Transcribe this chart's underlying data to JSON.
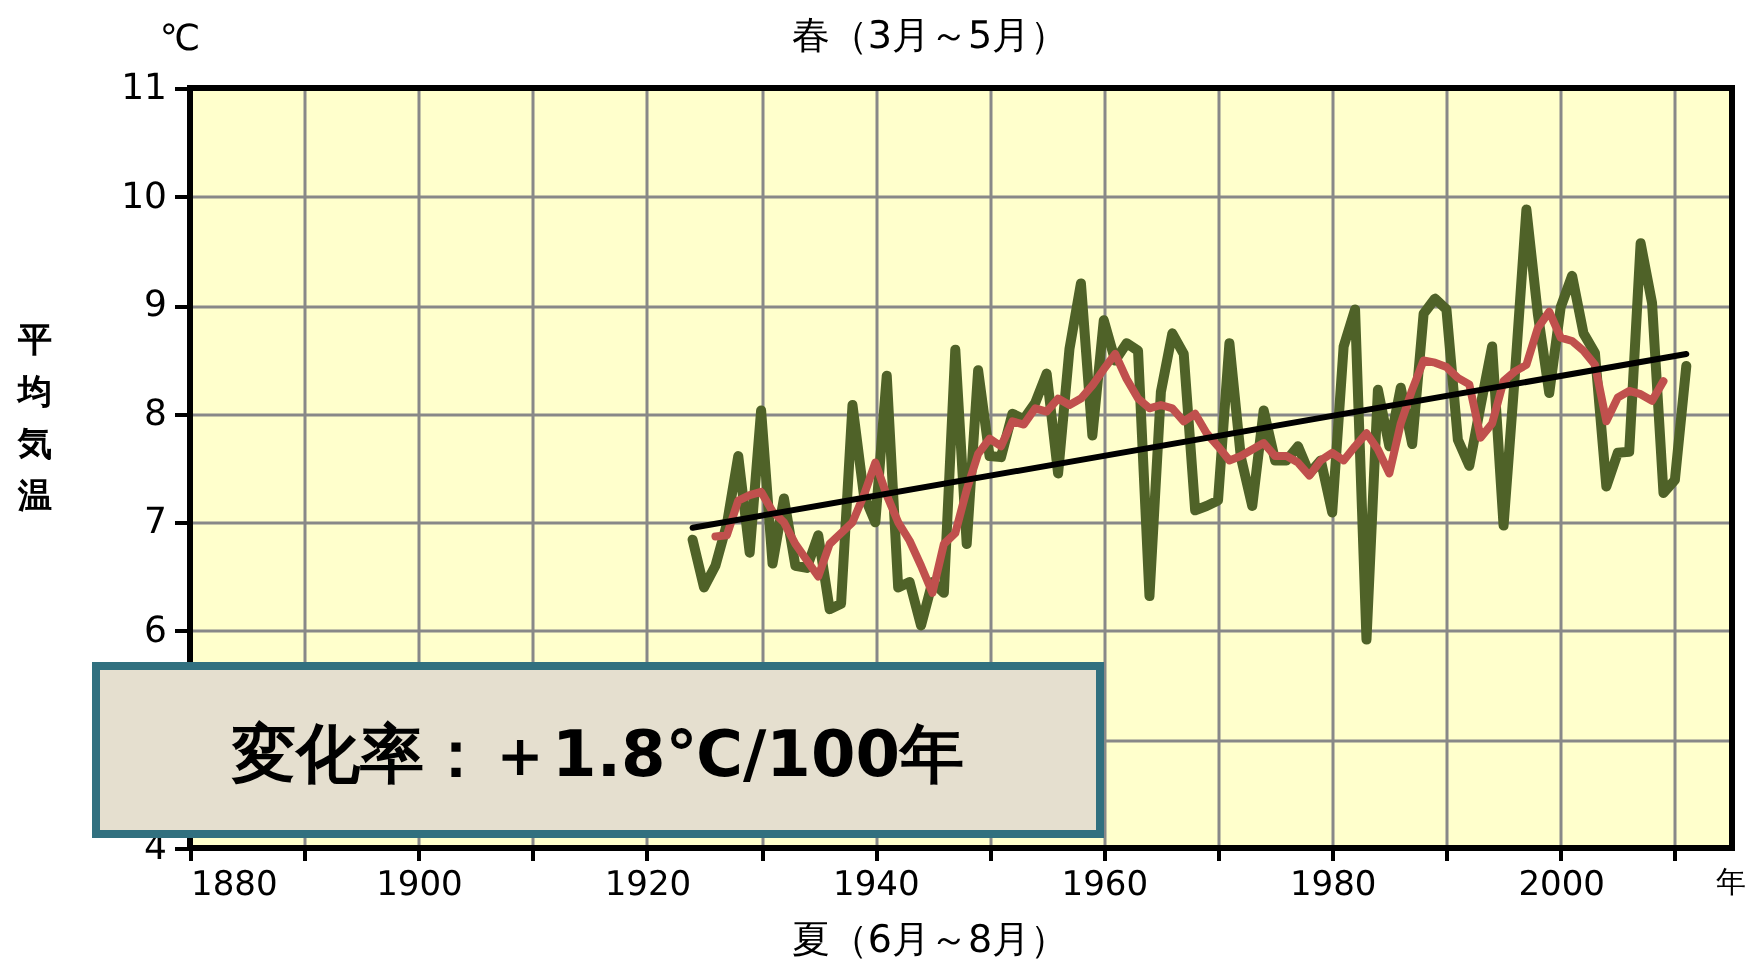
{
  "chart_data": {
    "type": "line",
    "title": "春（3月～5月）",
    "ylabel": "平均気温",
    "annotations": [
      "℃",
      "年",
      "夏（6月～8月）",
      "変化率：＋1.8℃/100年"
    ],
    "xlim": [
      1880,
      2015
    ],
    "xticks": [
      1880,
      {
        "value": 1890,
        "label": null
      },
      1900,
      {
        "value": 1910,
        "label": null
      },
      1920,
      {
        "value": 1930,
        "label": null
      },
      1940,
      {
        "value": 1950,
        "label": null
      },
      1960,
      {
        "value": 1970,
        "label": null
      },
      1980,
      {
        "value": 1990,
        "label": null
      },
      2000,
      {
        "value": 2010,
        "label": null
      }
    ],
    "ylim": [
      4,
      11
    ],
    "yticks": [
      4,
      {
        "value": 5,
        "label": null
      },
      6,
      7,
      8,
      9,
      10,
      11
    ],
    "grid": true,
    "marker": "none",
    "line_style": "solid",
    "series": [
      {
        "color": "#4f6228",
        "x": [
          1924,
          1925,
          1926,
          1927,
          1928,
          1929,
          1930,
          1931,
          1932,
          1933,
          1934,
          1935,
          1936,
          1937,
          1938,
          1939,
          1940,
          1941,
          1942,
          1943,
          1944,
          1945,
          1946,
          1947,
          1948,
          1949,
          1950,
          1951,
          1952,
          1953,
          1954,
          1955,
          1956,
          1957,
          1958,
          1959,
          1960,
          1961,
          1962,
          1963,
          1964,
          1965,
          1966,
          1967,
          1968,
          1969,
          1970,
          1971,
          1972,
          1973,
          1974,
          1975,
          1976,
          1977,
          1978,
          1979,
          1980,
          1981,
          1982,
          1983,
          1984,
          1985,
          1986,
          1987,
          1988,
          1989,
          1990,
          1991,
          1992,
          1993,
          1994,
          1995,
          1996,
          1997,
          1998,
          1999,
          2000,
          2001,
          2002,
          2003,
          2004,
          2005,
          2006,
          2007,
          2008,
          2009,
          2010,
          2011
        ],
        "values": [
          6.84,
          6.4,
          6.6,
          6.98,
          7.61,
          6.72,
          8.03,
          6.62,
          7.22,
          6.6,
          6.58,
          6.88,
          6.2,
          6.25,
          8.08,
          7.25,
          7.0,
          8.35,
          6.4,
          6.45,
          6.05,
          6.45,
          6.35,
          8.59,
          6.8,
          8.4,
          7.61,
          7.6,
          8.0,
          7.95,
          8.1,
          8.37,
          7.45,
          8.6,
          9.2,
          7.8,
          8.86,
          8.49,
          8.65,
          8.58,
          6.32,
          8.2,
          8.74,
          8.55,
          7.11,
          7.15,
          7.2,
          8.65,
          7.6,
          7.15,
          8.03,
          7.57,
          7.57,
          7.7,
          7.45,
          7.57,
          7.09,
          8.62,
          8.96,
          5.92,
          8.22,
          7.7,
          8.24,
          7.72,
          8.92,
          9.06,
          8.96,
          7.76,
          7.52,
          8.08,
          8.62,
          6.97,
          8.37,
          9.88,
          8.92,
          8.19,
          8.98,
          9.27,
          8.74,
          8.56,
          7.33,
          7.64,
          7.65,
          9.57,
          9.02,
          7.27,
          7.39,
          8.44
        ]
      },
      {
        "color": "#c0504d",
        "x": [
          1926,
          1927,
          1928,
          1929,
          1930,
          1931,
          1932,
          1933,
          1934,
          1935,
          1936,
          1937,
          1938,
          1939,
          1940,
          1941,
          1942,
          1943,
          1944,
          1945,
          1946,
          1947,
          1948,
          1949,
          1950,
          1951,
          1952,
          1953,
          1954,
          1955,
          1956,
          1957,
          1958,
          1959,
          1960,
          1961,
          1962,
          1963,
          1964,
          1965,
          1966,
          1967,
          1968,
          1969,
          1970,
          1971,
          1972,
          1973,
          1974,
          1975,
          1976,
          1977,
          1978,
          1979,
          1980,
          1981,
          1982,
          1983,
          1984,
          1985,
          1986,
          1987,
          1988,
          1989,
          1990,
          1991,
          1992,
          1993,
          1994,
          1995,
          1996,
          1997,
          1998,
          1999,
          2000,
          2001,
          2002,
          2003,
          2004,
          2005,
          2006,
          2007,
          2008,
          2009
        ],
        "values": [
          6.87,
          6.88,
          7.2,
          7.25,
          7.28,
          7.1,
          7.0,
          6.8,
          6.65,
          6.5,
          6.8,
          6.9,
          7.0,
          7.25,
          7.55,
          7.25,
          7.0,
          6.83,
          6.6,
          6.35,
          6.8,
          6.9,
          7.3,
          7.63,
          7.77,
          7.7,
          7.93,
          7.9,
          8.05,
          8.02,
          8.14,
          8.08,
          8.14,
          8.26,
          8.41,
          8.55,
          8.32,
          8.14,
          8.05,
          8.08,
          8.05,
          7.93,
          8.0,
          7.82,
          7.7,
          7.57,
          7.61,
          7.67,
          7.73,
          7.61,
          7.61,
          7.55,
          7.43,
          7.57,
          7.64,
          7.57,
          7.7,
          7.82,
          7.67,
          7.45,
          7.91,
          8.22,
          8.49,
          8.47,
          8.43,
          8.33,
          8.27,
          7.78,
          7.91,
          8.3,
          8.39,
          8.45,
          8.79,
          8.94,
          8.7,
          8.67,
          8.58,
          8.45,
          7.93,
          8.15,
          8.21,
          8.18,
          8.12,
          8.3
        ]
      },
      {
        "type": "line",
        "color": "#000000",
        "x": [
          1924,
          2011
        ],
        "values": [
          6.95,
          8.55
        ]
      }
    ]
  }
}
